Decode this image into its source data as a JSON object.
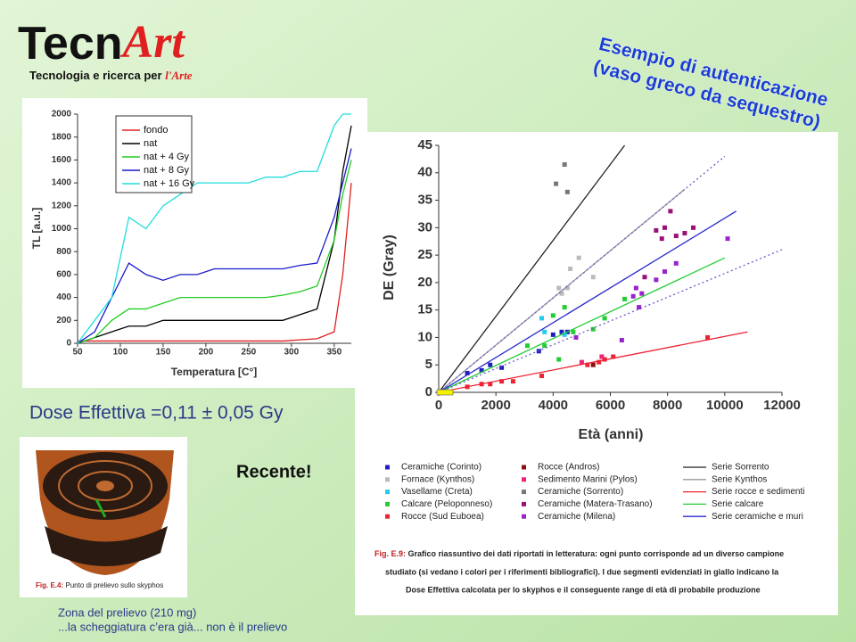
{
  "header": {
    "logo": {
      "brand": "Tecn",
      "brand_accent": "Art",
      "tagline": "Tecnologia e ricerca per",
      "tagline_accent": "l'Arte"
    },
    "title": [
      "Esempio di autenticazione",
      "(vaso greco da sequestro)"
    ]
  },
  "dose": "Dose Effettiva =0,11 ± 0,05 Gy",
  "recent": "Recente!",
  "photo_caption": {
    "label": "Fig. E.4:",
    "text": "Punto di prelievo sullo skyphos"
  },
  "notes": [
    "Zona del prelievo (210 mg)",
    "...la scheggiatura c’era già... non è il prelievo"
  ],
  "figure_caption": {
    "label": "Fig. E.9:",
    "lines": [
      "Grafico riassuntivo dei dati riportati in letteratura: ogni punto corrisponde ad un diverso campione",
      "studiato (si vedano i colori per i riferimenti bibliografici). I due segmenti evidenziati in giallo indicano la",
      "Dose Effettiva calcolata per lo skyphos e il conseguente range di età di probabile produzione"
    ]
  },
  "chart_data": [
    {
      "type": "line",
      "x_label": "Temperatura [C°]",
      "y_label": "TL [a.u.]",
      "xlim": [
        50,
        370
      ],
      "xticks": [
        50,
        100,
        150,
        200,
        250,
        300,
        350
      ],
      "ylim": [
        0,
        2000
      ],
      "yticks": [
        0,
        200,
        400,
        600,
        800,
        1000,
        1200,
        1400,
        1600,
        1800,
        2000
      ],
      "legend": "upper left",
      "grid": false,
      "x": [
        50,
        70,
        90,
        110,
        130,
        150,
        170,
        190,
        210,
        230,
        250,
        270,
        290,
        310,
        330,
        350,
        360,
        370
      ],
      "series": [
        {
          "name": "fondo",
          "color": "#e02020",
          "values": [
            20,
            20,
            20,
            20,
            20,
            20,
            20,
            20,
            20,
            20,
            20,
            20,
            20,
            30,
            40,
            100,
            600,
            1400
          ]
        },
        {
          "name": "nat",
          "color": "#000000",
          "values": [
            0,
            50,
            100,
            150,
            150,
            200,
            200,
            200,
            200,
            200,
            200,
            200,
            200,
            250,
            300,
            900,
            1500,
            1900
          ]
        },
        {
          "name": "nat + 4 Gy",
          "color": "#22cc22",
          "values": [
            0,
            50,
            200,
            300,
            300,
            350,
            400,
            400,
            400,
            400,
            400,
            400,
            420,
            450,
            500,
            900,
            1300,
            1600
          ]
        },
        {
          "name": "nat + 8 Gy",
          "color": "#1a1acc",
          "values": [
            0,
            100,
            400,
            700,
            600,
            550,
            600,
            600,
            650,
            650,
            650,
            650,
            650,
            680,
            700,
            1100,
            1400,
            1700
          ]
        },
        {
          "name": "nat + 16 Gy",
          "color": "#22dddd",
          "values": [
            0,
            200,
            400,
            1100,
            1000,
            1200,
            1300,
            1400,
            1400,
            1400,
            1400,
            1450,
            1450,
            1500,
            1500,
            1900,
            2000,
            2000
          ]
        }
      ]
    },
    {
      "type": "scatter",
      "x_label": "Età (anni)",
      "y_label": "DE (Gray)",
      "xlim": [
        0,
        12000
      ],
      "xticks": [
        0,
        2000,
        4000,
        6000,
        8000,
        10000,
        12000
      ],
      "ylim": [
        0,
        45
      ],
      "yticks": [
        0,
        5,
        10,
        15,
        20,
        25,
        30,
        35,
        40,
        45
      ],
      "grid": false,
      "legend": "below",
      "series": [
        {
          "name": "Ceramiche (Corinto)",
          "color": "#1f1fc0",
          "x": [
            1000,
            1500,
            1800,
            2200,
            3500,
            4000,
            4300,
            4500
          ],
          "values": [
            3.5,
            4,
            5,
            4.5,
            7.5,
            10.5,
            11,
            11
          ]
        },
        {
          "name": "Fornace (Kynthos)",
          "color": "#bbbbbb",
          "x": [
            4200,
            4300,
            4500,
            4600,
            4900,
            5400
          ],
          "values": [
            19,
            18,
            19,
            22.5,
            24.5,
            21
          ]
        },
        {
          "name": "Vasellame (Creta)",
          "color": "#22ccee",
          "x": [
            3600,
            3700,
            4400
          ],
          "values": [
            13.5,
            11,
            10.5
          ]
        },
        {
          "name": "Calcare (Peloponneso)",
          "color": "#22cc33",
          "x": [
            3100,
            3700,
            4000,
            4200,
            4400,
            4700,
            5400,
            5800,
            6500
          ],
          "values": [
            8.5,
            8.5,
            14,
            6,
            15.5,
            11,
            11.5,
            13.5,
            17
          ]
        },
        {
          "name": "Rocce (Sud Euboea)",
          "color": "#ee2233",
          "x": [
            1000,
            1500,
            1800,
            2200,
            2600,
            3600,
            5200,
            5600,
            5800,
            6100,
            9400
          ],
          "values": [
            1,
            1.5,
            1.5,
            2,
            2,
            3,
            5,
            5.5,
            6,
            6.5,
            10
          ]
        },
        {
          "name": "Rocce (Andros)",
          "color": "#881111",
          "x": [
            5400
          ],
          "values": [
            5
          ]
        },
        {
          "name": "Sedimento Marini (Pylos)",
          "color": "#ee2277",
          "x": [
            5000,
            5700
          ],
          "values": [
            5.5,
            6.5
          ]
        },
        {
          "name": "Ceramiche (Sorrento)",
          "color": "#777777",
          "x": [
            4100,
            4400,
            4500
          ],
          "values": [
            38,
            41.5,
            36.5
          ]
        },
        {
          "name": "Ceramiche (Matera-Trasano)",
          "color": "#991177",
          "x": [
            7200,
            7600,
            7800,
            7900,
            8100,
            8300,
            8600,
            8900
          ],
          "values": [
            21,
            29.5,
            28,
            30,
            33,
            28.5,
            29,
            30
          ]
        },
        {
          "name": "Ceramiche (Milena)",
          "color": "#9922cc",
          "x": [
            4800,
            6400,
            6800,
            6900,
            7000,
            7100,
            7600,
            7900,
            8300,
            10100
          ],
          "values": [
            10,
            9.5,
            17.5,
            19,
            15.5,
            18,
            20.5,
            22,
            23.5,
            28
          ]
        },
        {
          "name": "Serie Sorrento",
          "color": "#222222",
          "mode": "line",
          "x": [
            0,
            6500
          ],
          "values": [
            0,
            45
          ]
        },
        {
          "name": "Serie Kynthos",
          "color": "#999999",
          "mode": "line",
          "x": [
            0,
            8600
          ],
          "values": [
            0,
            37
          ]
        },
        {
          "name": "Serie rocce e sedimenti",
          "color": "#ee2233",
          "mode": "line",
          "x": [
            0,
            10800
          ],
          "values": [
            0,
            11
          ]
        },
        {
          "name": "Serie calcare",
          "color": "#22cc33",
          "mode": "line",
          "x": [
            0,
            10000
          ],
          "values": [
            0,
            24.5
          ]
        },
        {
          "name": "Serie ceramiche e muri",
          "color": "#2a2acc",
          "mode": "line",
          "x": [
            0,
            10400
          ],
          "values": [
            0,
            33
          ]
        },
        {
          "color": "#6a5acd",
          "mode": "line",
          "dash": true,
          "x": [
            0,
            10000
          ],
          "values": [
            0,
            43
          ]
        },
        {
          "color": "#6a5acd",
          "mode": "line",
          "dash": true,
          "x": [
            0,
            12000
          ],
          "values": [
            0,
            26
          ]
        }
      ]
    }
  ]
}
